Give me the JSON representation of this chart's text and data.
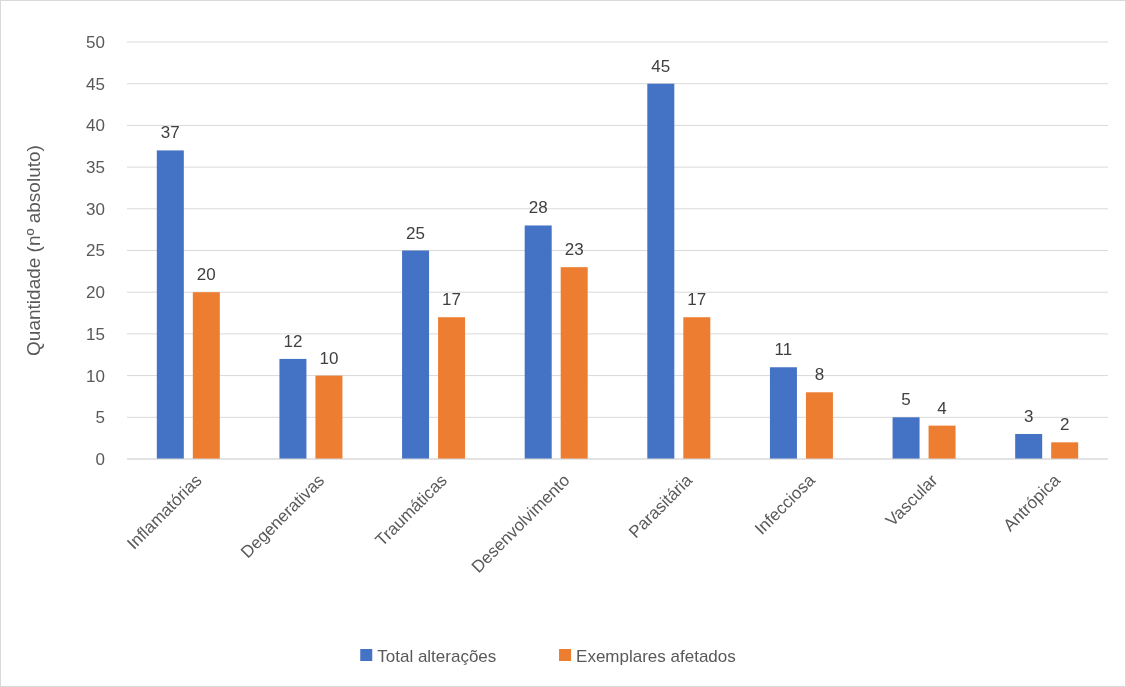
{
  "chart_data": {
    "type": "bar",
    "ylabel": "Quantidade (nº absoluto)",
    "categories": [
      "Inflamatórias",
      "Degenerativas",
      "Traumáticas",
      "Desenvolvimento",
      "Parasitária",
      "Infecciosa",
      "Vascular",
      "Antrópica"
    ],
    "series": [
      {
        "name": "Total alterações",
        "color": "#4472c4",
        "values": [
          37,
          12,
          25,
          28,
          45,
          11,
          5,
          3
        ]
      },
      {
        "name": "Exemplares afetados",
        "color": "#ed7d31",
        "values": [
          20,
          10,
          17,
          23,
          17,
          8,
          4,
          2
        ]
      }
    ],
    "ylim": [
      0,
      50
    ],
    "yticks": [
      0,
      5,
      10,
      15,
      20,
      25,
      30,
      35,
      40,
      45,
      50
    ],
    "grid": "y",
    "legend": "bottom",
    "data_labels": true
  }
}
